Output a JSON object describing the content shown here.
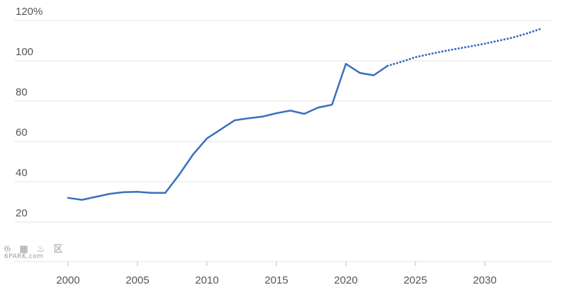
{
  "chart_data": {
    "type": "line",
    "title": "",
    "xlabel": "",
    "ylabel": "",
    "x_ticks": [
      "2000",
      "2005",
      "2010",
      "2015",
      "2020",
      "2025",
      "2030"
    ],
    "y_ticks": [
      "20",
      "40",
      "60",
      "80",
      "100",
      "120%"
    ],
    "xlim": [
      1997,
      2035
    ],
    "ylim": [
      0,
      125
    ],
    "grid": true,
    "legend": "none",
    "series": [
      {
        "style": "solid",
        "color": "#3a6fbf",
        "x": [
          2000,
          2001,
          2002,
          2003,
          2004,
          2005,
          2006,
          2007,
          2008,
          2009,
          2010,
          2011,
          2012,
          2013,
          2014,
          2015,
          2016,
          2017,
          2018,
          2019,
          2020,
          2021,
          2022,
          2023
        ],
        "values": [
          32,
          31,
          32.5,
          34,
          34.8,
          35,
          34.5,
          34.5,
          43.5,
          53.5,
          61.5,
          66,
          70.5,
          71.5,
          72.3,
          74,
          75.3,
          73.7,
          76.8,
          78.2,
          98.5,
          94,
          92.8,
          97.5
        ]
      },
      {
        "style": "dotted",
        "color": "#3a6fbf",
        "x": [
          2023,
          2024,
          2025,
          2026,
          2027,
          2028,
          2029,
          2030,
          2031,
          2032,
          2033,
          2034
        ],
        "values": [
          97.5,
          99.5,
          101.8,
          103.3,
          104.7,
          106,
          107.2,
          108.5,
          110,
          111.5,
          113.5,
          115.8
        ]
      }
    ]
  },
  "watermark": {
    "glyphs": "𝔊 ▦ ♨ 区",
    "text": "6PARK.com"
  }
}
